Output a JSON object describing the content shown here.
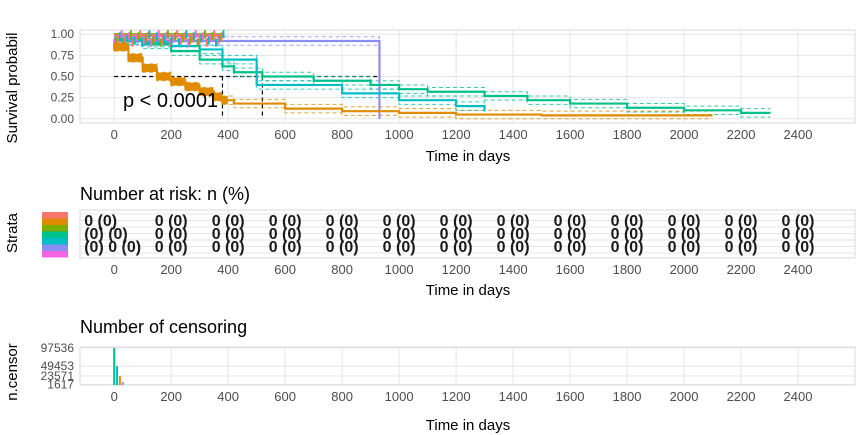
{
  "chart_data": [
    {
      "type": "line",
      "title": "",
      "xlabel": "Time in days",
      "ylabel": "Survival probabil",
      "xlim": [
        -120,
        2600
      ],
      "ylim": [
        -0.05,
        1.05
      ],
      "x_ticks": [
        0,
        200,
        400,
        600,
        800,
        1000,
        1200,
        1400,
        1600,
        1800,
        2000,
        2200,
        2400
      ],
      "y_ticks": [
        0.0,
        0.25,
        0.5,
        0.75,
        1.0
      ],
      "y_tick_labels": [
        "0.00",
        "0.25",
        "0.50",
        "0.75",
        "1.00"
      ],
      "grid": true,
      "median_line": 0.5,
      "median_times": [
        380,
        520,
        930
      ],
      "annotation": "p < 0.0001",
      "series": [
        {
          "color": "#8c8cf5",
          "x": [
            0,
            20,
            380,
            930,
            931
          ],
          "y": [
            1.0,
            0.92,
            0.92,
            0.92,
            0.0
          ]
        },
        {
          "color": "#00c08b",
          "x": [
            0,
            100,
            200,
            300,
            380,
            420,
            520,
            700,
            900,
            1000,
            1100,
            1300,
            1450,
            1600,
            1800,
            2000,
            2200,
            2300
          ],
          "y": [
            0.95,
            0.88,
            0.8,
            0.7,
            0.62,
            0.55,
            0.5,
            0.45,
            0.4,
            0.35,
            0.32,
            0.27,
            0.22,
            0.18,
            0.13,
            0.1,
            0.07,
            0.06
          ]
        },
        {
          "color": "#e08b00",
          "x": [
            0,
            50,
            100,
            150,
            200,
            250,
            300,
            350,
            380,
            420,
            600,
            800,
            1000,
            1200,
            1500,
            1800,
            2100
          ],
          "y": [
            0.85,
            0.72,
            0.6,
            0.5,
            0.44,
            0.38,
            0.32,
            0.26,
            0.22,
            0.18,
            0.12,
            0.09,
            0.07,
            0.05,
            0.04,
            0.04,
            0.04
          ]
        },
        {
          "color": "#00bfc4",
          "x": [
            0,
            100,
            200,
            300,
            380,
            500,
            800,
            1000,
            1200,
            1300
          ],
          "y": [
            0.93,
            0.9,
            0.86,
            0.82,
            0.7,
            0.4,
            0.3,
            0.22,
            0.15,
            0.1
          ]
        },
        {
          "color": "#f564e3",
          "x": [
            0,
            380
          ],
          "y": [
            0.98,
            0.98
          ]
        },
        {
          "color": "#7cae00",
          "x": [
            0,
            380
          ],
          "y": [
            1.0,
            1.0
          ]
        },
        {
          "color": "#f8766d",
          "x": [
            0,
            380
          ],
          "y": [
            0.99,
            0.99
          ]
        }
      ]
    },
    {
      "type": "table",
      "title": "Number at risk: n (%)",
      "xlabel": "Time in days",
      "ylabel": "Strata",
      "xlim": [
        -120,
        2600
      ],
      "x_ticks": [
        0,
        200,
        400,
        600,
        800,
        1000,
        1200,
        1400,
        1600,
        1800,
        2000,
        2200,
        2400
      ],
      "strata_colors": [
        "#f8766d",
        "#e08b00",
        "#7cae00",
        "#00c08b",
        "#00bfc4",
        "#8c8cf5",
        "#f564e3"
      ],
      "overlapping_labels": [
        "0 (0)",
        "0 (0)",
        "0 (0)",
        "0 (0)",
        "0 (0)",
        "0 (0)",
        "0 (0)",
        "0 (0)",
        "0 (0)",
        "0 (0)",
        "0 (0)",
        "0 (0)"
      ],
      "first_column_text": [
        "0 (0)",
        "(0) (0)",
        "(0) 0 (0)"
      ]
    },
    {
      "type": "bar",
      "title": "Number of censoring",
      "xlabel": "Time in days",
      "ylabel": "n.censor",
      "xlim": [
        -120,
        2600
      ],
      "x_ticks": [
        0,
        200,
        400,
        600,
        800,
        1000,
        1200,
        1400,
        1600,
        1800,
        2000,
        2200,
        2400
      ],
      "y_tick_labels": [
        "97536",
        "49453",
        "23571",
        "1617"
      ],
      "y_ticks": [
        97536,
        49453,
        23571,
        1617
      ],
      "ylim": [
        0,
        100000
      ],
      "grid": true,
      "bars": [
        {
          "x": 0,
          "y": 97536,
          "color": "#00c08b"
        },
        {
          "x": 10,
          "y": 49453,
          "color": "#00bfc4"
        },
        {
          "x": 20,
          "y": 23571,
          "color": "#e08b00"
        },
        {
          "x": 30,
          "y": 8000,
          "color": "#8c8cf5"
        }
      ]
    }
  ]
}
